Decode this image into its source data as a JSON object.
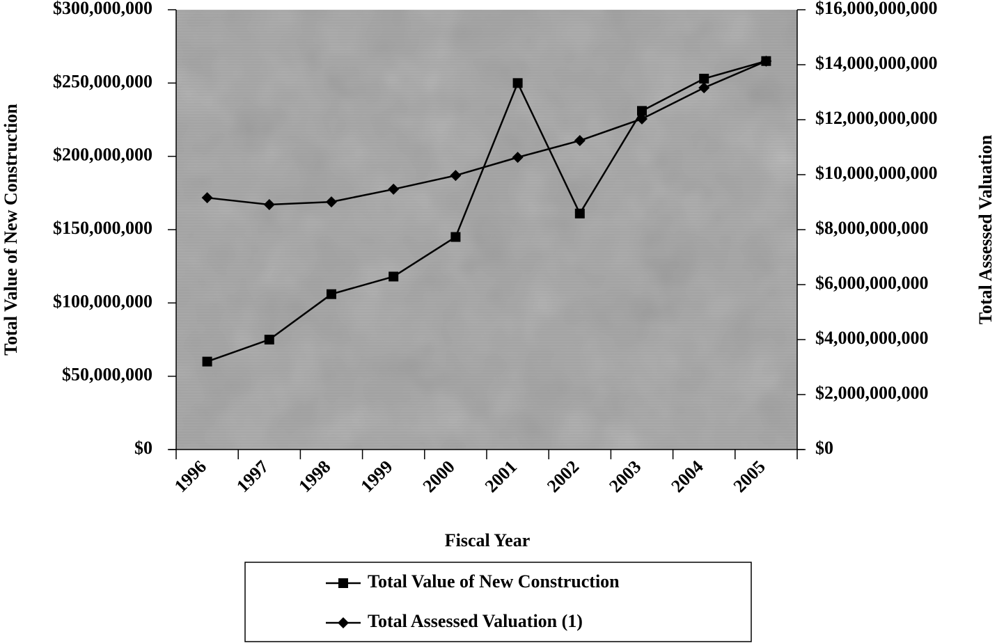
{
  "chart_data": {
    "type": "line",
    "x_label": "Fiscal Year",
    "y_label": "Total Value of New Construction",
    "y2_label": "Total Assessed Valuation",
    "categories": [
      "1996",
      "1997",
      "1998",
      "1999",
      "2000",
      "2001",
      "2002",
      "2003",
      "2004",
      "2005"
    ],
    "series": [
      {
        "name": "Total Value of New Construction",
        "color": "#000000",
        "marker": "square",
        "values": [
          60000000,
          75000000,
          106000000,
          118000000,
          145000000,
          250000000,
          161000000,
          231000000,
          253000000,
          265000000
        ]
      },
      {
        "name": "Total Assessed Valuation (1)",
        "color": "#000000",
        "marker": "diamond",
        "axis": "y2",
        "values": [
          9160000000,
          8910000000,
          9010000000,
          9470000000,
          9970000000,
          10630000000,
          11240000000,
          12030000000,
          13160000000,
          14130000000
        ]
      }
    ],
    "ylim": [
      0,
      300000000
    ],
    "yticks": [
      0,
      {
        "value": 50000000,
        "label": "$50,000,000"
      },
      {
        "value": 100000000,
        "label": "$100,000,000"
      },
      {
        "value": 150000000,
        "label": "$150,000,000"
      },
      {
        "value": 200000000,
        "label": "$200,000,000"
      },
      {
        "value": 250000000,
        "label": "$250,000,000"
      },
      {
        "value": 300000000,
        "label": "$300,000,000"
      }
    ],
    "y2lim": [
      0,
      16000000000
    ],
    "y2ticks": [
      {
        "value": 0,
        "label": "$0"
      },
      {
        "value": 2000000000,
        "label": "$2,000,000,000"
      },
      {
        "value": 4000000000,
        "label": "$4,000,000,000"
      },
      {
        "value": 6000000000,
        "label": "$6,000,000,000"
      },
      {
        "value": 8000000000,
        "label": "$8,000,000,000"
      },
      {
        "value": 10000000000,
        "label": "$10,000,000,000"
      },
      {
        "value": 12000000000,
        "label": "$12,000,000,000"
      },
      {
        "value": 14000000000,
        "label": "$14,000,000,000"
      },
      {
        "value": 16000000000,
        "label": "$16,000,000,000"
      }
    ],
    "plot_background": "#a4a4a4"
  }
}
